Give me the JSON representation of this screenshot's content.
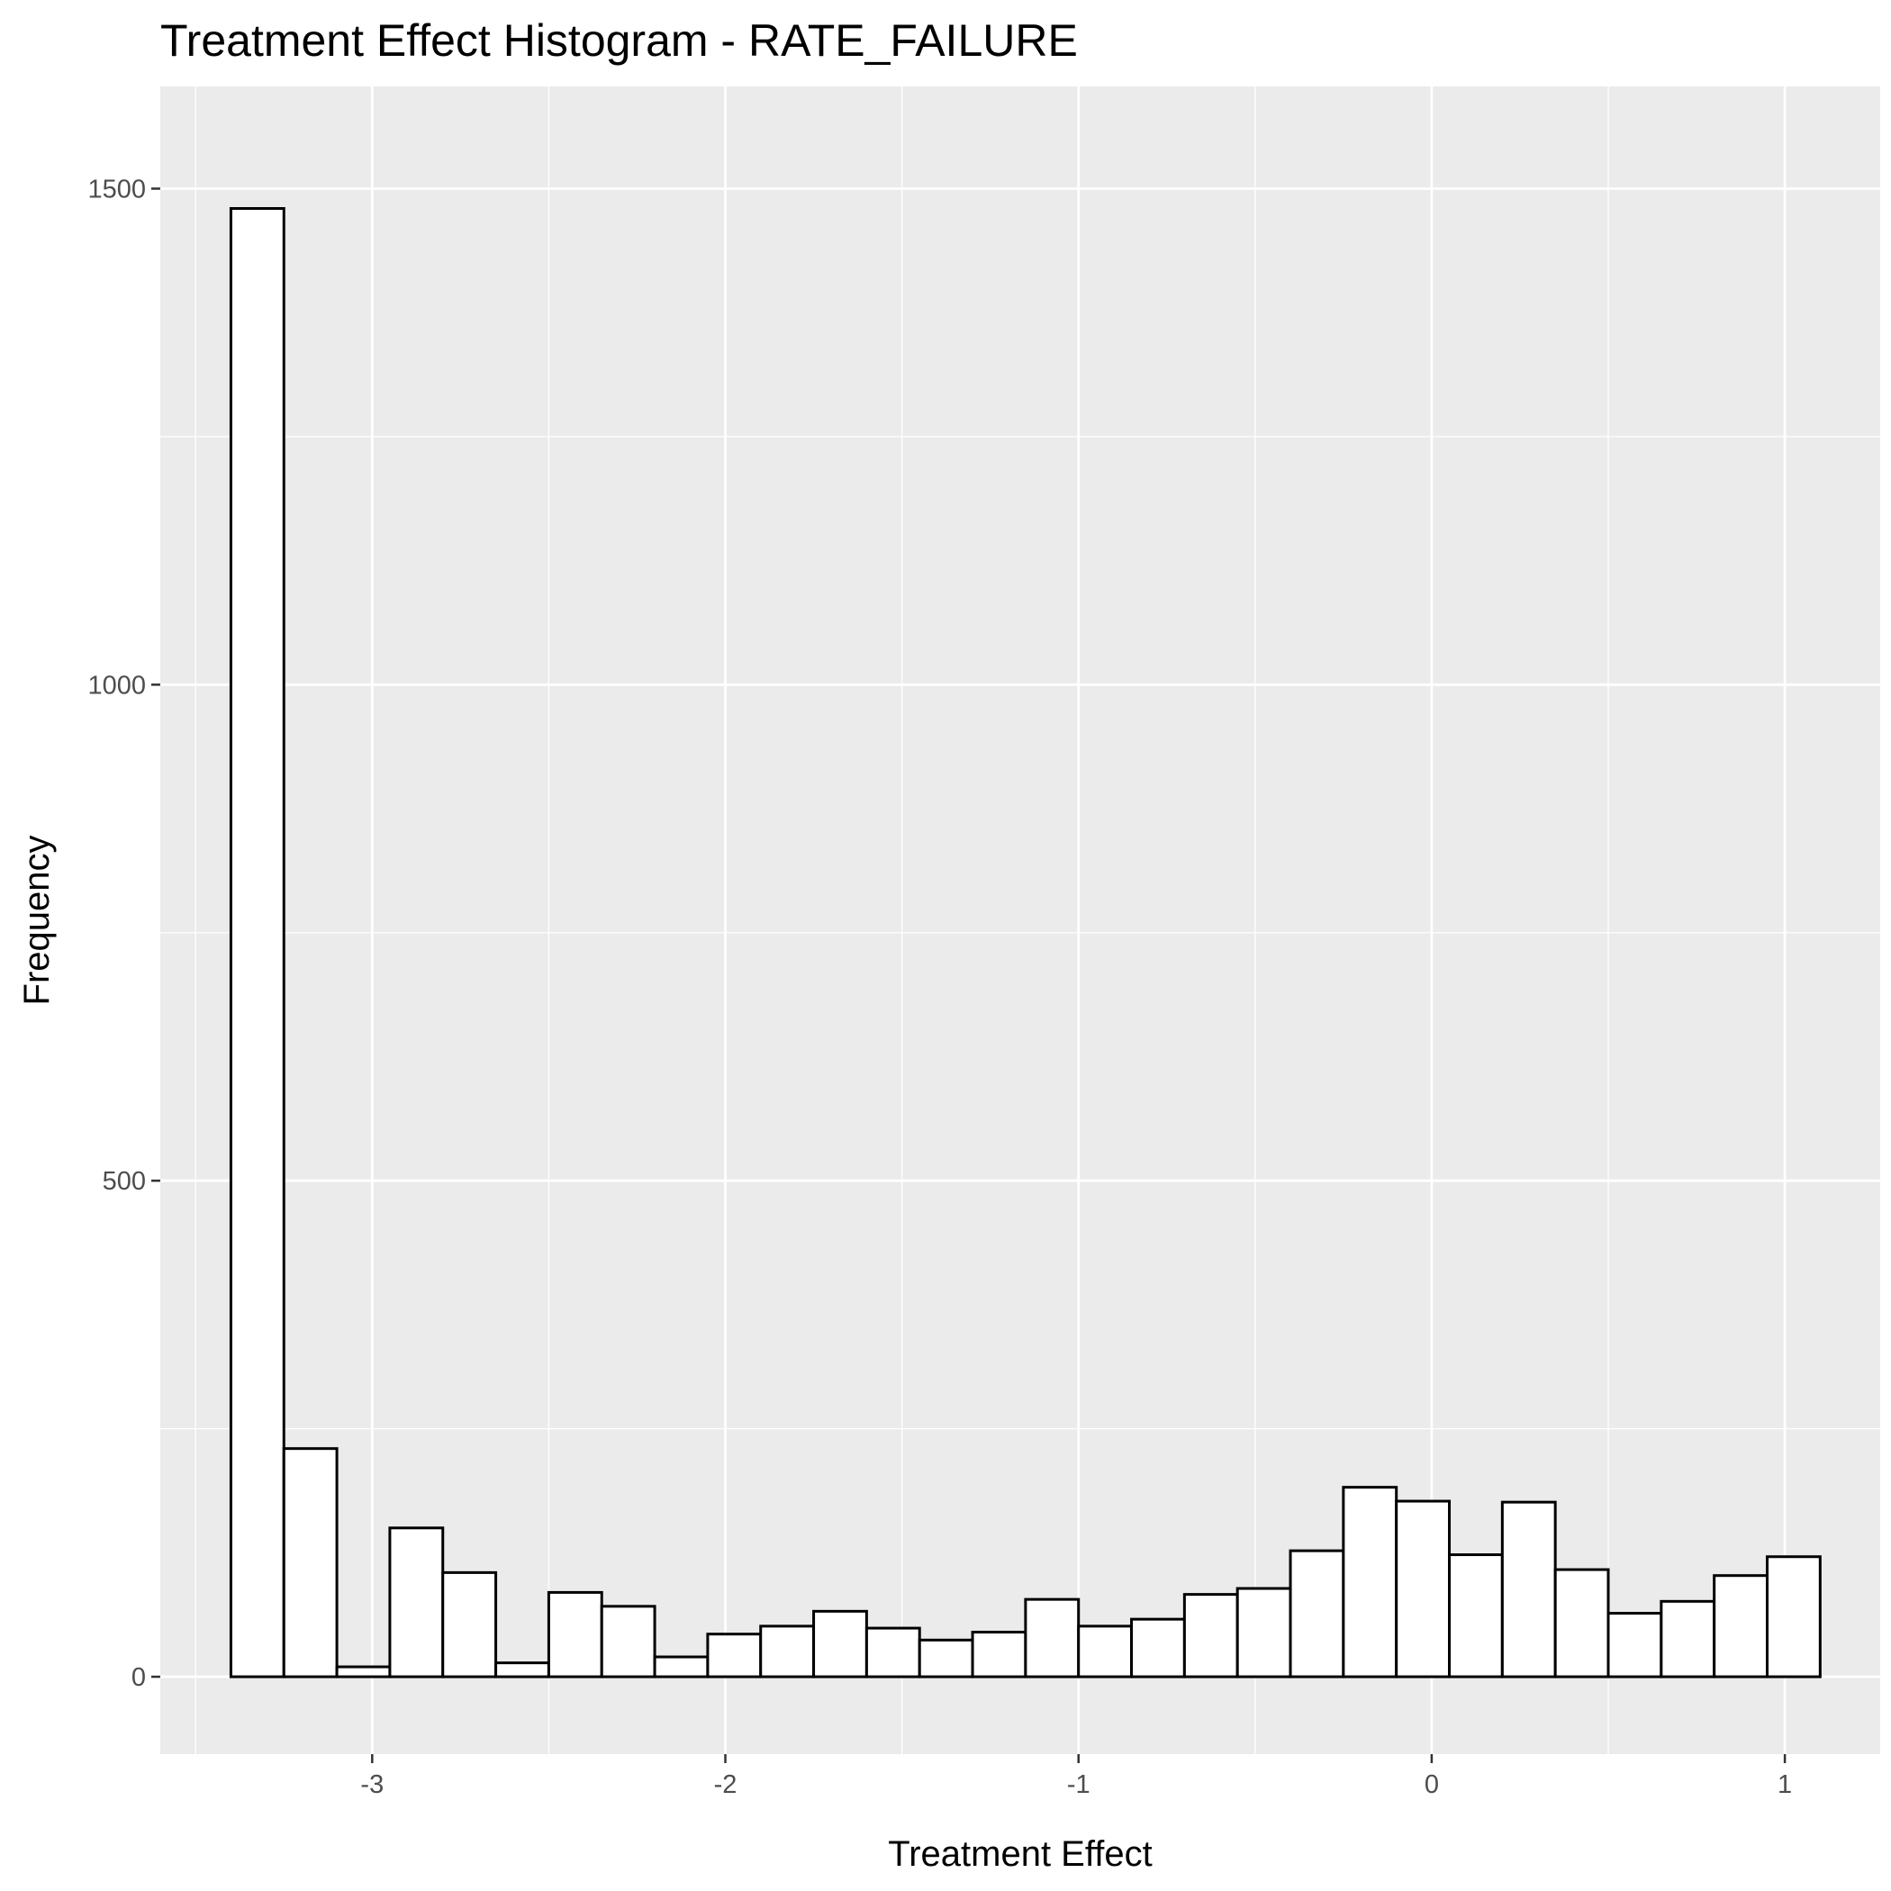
{
  "colors": {
    "panel_background": "#EBEBEB",
    "grid_major": "#FFFFFF",
    "grid_minor": "#FFFFFF",
    "bar_fill": "#FFFFFF",
    "bar_outline": "#000000",
    "tick_color": "#333333",
    "tick_label_color": "#4D4D4D"
  },
  "chart_data": {
    "type": "bar",
    "subtype": "histogram",
    "title": "Treatment Effect Histogram -  RATE_FAILURE",
    "xlabel": "Treatment Effect",
    "ylabel": "Frequency",
    "xlim": [
      -3.6,
      1.27
    ],
    "ylim": [
      -78,
      1603
    ],
    "x_ticks": [
      -3,
      -2,
      -1,
      0,
      1
    ],
    "x_tick_labels": [
      "-3",
      "-2",
      "-1",
      "0",
      "1"
    ],
    "y_ticks": [
      0,
      500,
      1000,
      1500
    ],
    "y_tick_labels": [
      "0",
      "500",
      "1000",
      "1500"
    ],
    "grid": true,
    "legend": "none",
    "bin_width": 0.15,
    "bins": [
      {
        "x0": -3.4,
        "x1": -3.25,
        "count": 1480
      },
      {
        "x0": -3.25,
        "x1": -3.1,
        "count": 230
      },
      {
        "x0": -3.1,
        "x1": -2.95,
        "count": 10
      },
      {
        "x0": -2.95,
        "x1": -2.8,
        "count": 150
      },
      {
        "x0": -2.8,
        "x1": -2.65,
        "count": 105
      },
      {
        "x0": -2.65,
        "x1": -2.5,
        "count": 14
      },
      {
        "x0": -2.5,
        "x1": -2.35,
        "count": 85
      },
      {
        "x0": -2.35,
        "x1": -2.2,
        "count": 71
      },
      {
        "x0": -2.2,
        "x1": -2.05,
        "count": 20
      },
      {
        "x0": -2.05,
        "x1": -1.9,
        "count": 43
      },
      {
        "x0": -1.9,
        "x1": -1.75,
        "count": 51
      },
      {
        "x0": -1.75,
        "x1": -1.6,
        "count": 66
      },
      {
        "x0": -1.6,
        "x1": -1.45,
        "count": 49
      },
      {
        "x0": -1.45,
        "x1": -1.3,
        "count": 37
      },
      {
        "x0": -1.3,
        "x1": -1.15,
        "count": 45
      },
      {
        "x0": -1.15,
        "x1": -1.0,
        "count": 78
      },
      {
        "x0": -1.0,
        "x1": -0.85,
        "count": 51
      },
      {
        "x0": -0.85,
        "x1": -0.7,
        "count": 58
      },
      {
        "x0": -0.7,
        "x1": -0.55,
        "count": 83
      },
      {
        "x0": -0.55,
        "x1": -0.4,
        "count": 89
      },
      {
        "x0": -0.4,
        "x1": -0.25,
        "count": 127
      },
      {
        "x0": -0.25,
        "x1": -0.1,
        "count": 191
      },
      {
        "x0": -0.1,
        "x1": 0.05,
        "count": 177
      },
      {
        "x0": 0.05,
        "x1": 0.2,
        "count": 123
      },
      {
        "x0": 0.2,
        "x1": 0.35,
        "count": 176
      },
      {
        "x0": 0.35,
        "x1": 0.5,
        "count": 108
      },
      {
        "x0": 0.5,
        "x1": 0.65,
        "count": 64
      },
      {
        "x0": 0.65,
        "x1": 0.8,
        "count": 76
      },
      {
        "x0": 0.8,
        "x1": 0.95,
        "count": 102
      },
      {
        "x0": 0.95,
        "x1": 1.1,
        "count": 121
      }
    ]
  }
}
